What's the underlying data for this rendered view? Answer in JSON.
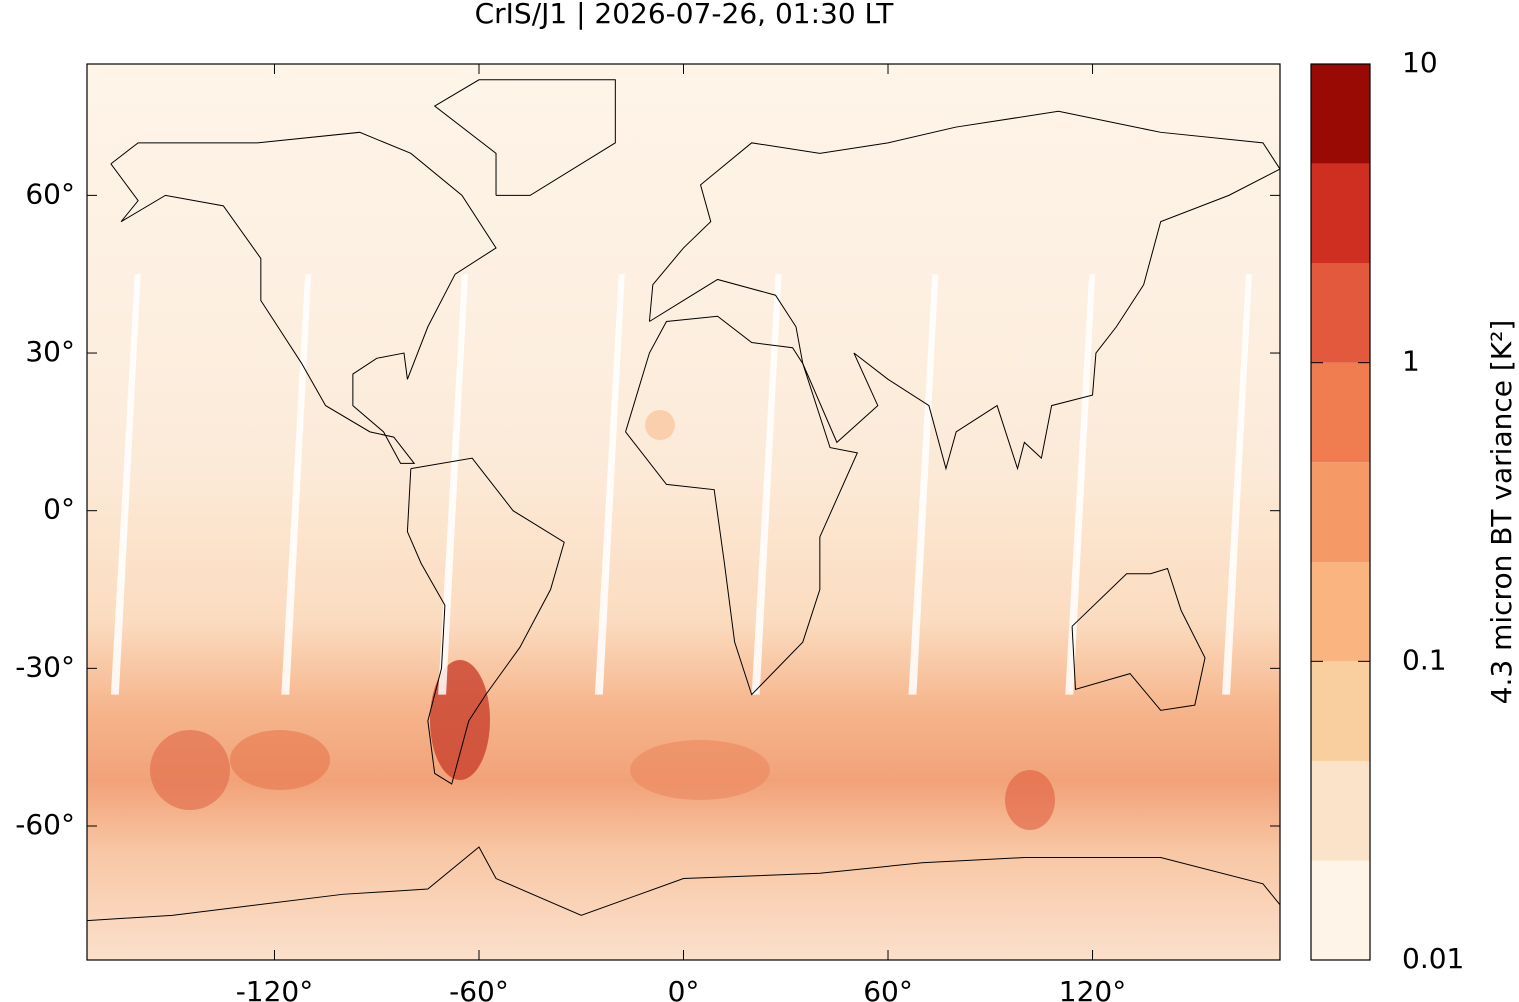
{
  "chart_data": {
    "type": "map",
    "title": "CrIS/J1 | 2026-07-26, 01:30 LT",
    "xlim": [
      -175,
      175
    ],
    "ylim": [
      -85.5,
      85
    ],
    "xticks": [
      {
        "value": -120,
        "label": "-120°"
      },
      {
        "value": -60,
        "label": "-60°"
      },
      {
        "value": 0,
        "label": "0°"
      },
      {
        "value": 60,
        "label": "60°"
      },
      {
        "value": 120,
        "label": "120°"
      }
    ],
    "yticks": [
      {
        "value": -60,
        "label": "-60°"
      },
      {
        "value": -30,
        "label": "-30°"
      },
      {
        "value": 0,
        "label": "0°"
      },
      {
        "value": 30,
        "label": "30°"
      },
      {
        "value": 60,
        "label": "60°"
      }
    ],
    "colorbar": {
      "label": "4.3 micron BT variance [K²]",
      "log": true,
      "lim": [
        0.01,
        10
      ],
      "ticks": [
        0.01,
        0.1,
        1,
        10
      ],
      "levels": [
        0.01,
        0.0215,
        0.0464,
        0.1,
        0.215,
        0.464,
        1,
        2.15,
        4.64,
        10
      ],
      "colors": [
        "#fef4e8",
        "#fbe3c9",
        "#f9cf9f",
        "#f9b47f",
        "#f59a66",
        "#ef7d50",
        "#e2593e",
        "#cf2f21",
        "#990a04"
      ]
    }
  }
}
